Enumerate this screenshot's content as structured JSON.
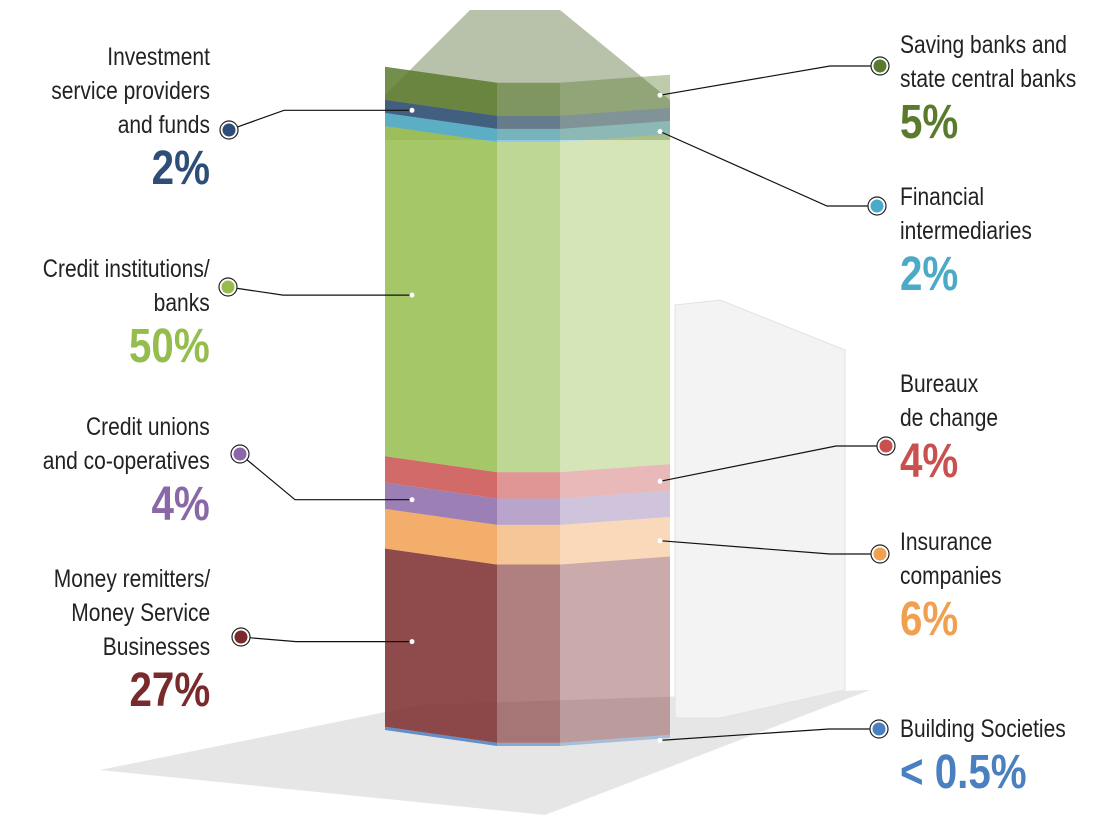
{
  "chart_data": {
    "type": "stacked_column",
    "series": [
      {
        "name": "Building Societies",
        "color": "#4a7fc0",
        "values": [
          0.5
        ],
        "value_labels": [
          "< 0.5%"
        ]
      },
      {
        "name": "Money remitters/\nMoney Service\nBusinesses",
        "color": "#7b2a2c",
        "values": [
          27
        ],
        "value_labels": [
          "27%"
        ]
      },
      {
        "name": "Insurance\ncompanies",
        "color": "#f0a050",
        "values": [
          6
        ],
        "value_labels": [
          "6%"
        ]
      },
      {
        "name": "Credit unions\nand co-operatives",
        "color": "#8a68a8",
        "values": [
          4
        ],
        "value_labels": [
          "4%"
        ]
      },
      {
        "name": "Bureaux\nde change",
        "color": "#c9504f",
        "values": [
          4
        ],
        "value_labels": [
          "4%"
        ]
      },
      {
        "name": "Credit institutions/\nbanks",
        "color": "#95bd4e",
        "values": [
          50
        ],
        "value_labels": [
          "50%"
        ]
      },
      {
        "name": "Financial\nintermediaries",
        "color": "#4aaac8",
        "values": [
          2
        ],
        "value_labels": [
          "2%"
        ]
      },
      {
        "name": "Investment\nservice providers\nand funds",
        "color": "#2e4d78",
        "values": [
          2
        ],
        "value_labels": [
          "2%"
        ]
      },
      {
        "name": "Saving banks and\nstate central banks",
        "color": "#5a7a2e",
        "values": [
          5
        ],
        "value_labels": [
          "5%"
        ]
      }
    ]
  }
}
